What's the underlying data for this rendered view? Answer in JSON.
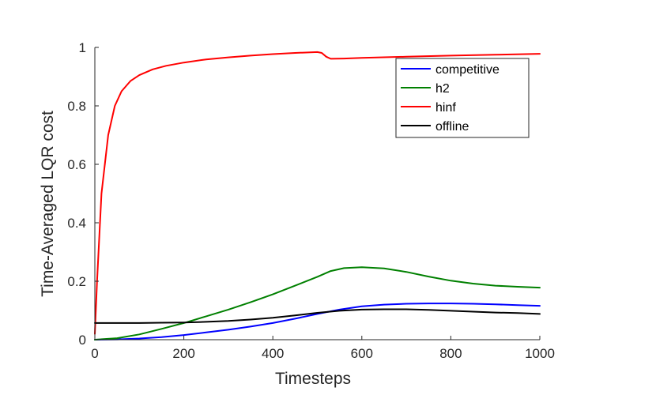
{
  "chart_data": {
    "type": "line",
    "xlabel": "Timesteps",
    "ylabel": "Time-Averaged LQR cost",
    "xlim": [
      0,
      1000
    ],
    "ylim": [
      0,
      1
    ],
    "xticks": [
      "0",
      "200",
      "400",
      "600",
      "800",
      "1000"
    ],
    "yticks": [
      "0",
      "0.2",
      "0.4",
      "0.6",
      "0.8",
      "1"
    ],
    "grid": false,
    "legend_position": "top-right",
    "series": [
      {
        "name": "competitive",
        "color": "#0000ff",
        "x": [
          0,
          50,
          100,
          150,
          200,
          250,
          300,
          350,
          400,
          450,
          500,
          550,
          600,
          650,
          700,
          750,
          800,
          850,
          900,
          950,
          1000
        ],
        "y": [
          0,
          0.001,
          0.004,
          0.009,
          0.016,
          0.025,
          0.034,
          0.045,
          0.057,
          0.072,
          0.088,
          0.103,
          0.114,
          0.12,
          0.123,
          0.124,
          0.124,
          0.123,
          0.121,
          0.118,
          0.116
        ]
      },
      {
        "name": "h2",
        "color": "#008000",
        "x": [
          0,
          50,
          100,
          150,
          200,
          250,
          300,
          350,
          400,
          450,
          500,
          530,
          560,
          600,
          650,
          700,
          750,
          800,
          850,
          900,
          950,
          1000
        ],
        "y": [
          0,
          0.005,
          0.018,
          0.037,
          0.057,
          0.08,
          0.103,
          0.128,
          0.155,
          0.185,
          0.215,
          0.235,
          0.245,
          0.248,
          0.244,
          0.232,
          0.216,
          0.202,
          0.192,
          0.185,
          0.181,
          0.178
        ]
      },
      {
        "name": "hinf",
        "color": "#ff0000",
        "x": [
          0,
          5,
          15,
          30,
          45,
          60,
          80,
          100,
          130,
          160,
          200,
          250,
          300,
          350,
          400,
          450,
          500,
          510,
          520,
          530,
          560,
          600,
          700,
          800,
          900,
          1000
        ],
        "y": [
          0.02,
          0.2,
          0.5,
          0.7,
          0.8,
          0.85,
          0.885,
          0.905,
          0.925,
          0.937,
          0.948,
          0.959,
          0.966,
          0.972,
          0.977,
          0.981,
          0.984,
          0.981,
          0.968,
          0.961,
          0.962,
          0.964,
          0.968,
          0.972,
          0.975,
          0.978
        ]
      },
      {
        "name": "offline",
        "color": "#000000",
        "x": [
          0,
          50,
          100,
          150,
          200,
          250,
          300,
          350,
          400,
          450,
          500,
          550,
          600,
          650,
          700,
          750,
          800,
          850,
          900,
          950,
          1000
        ],
        "y": [
          0.057,
          0.057,
          0.057,
          0.058,
          0.059,
          0.061,
          0.064,
          0.069,
          0.075,
          0.083,
          0.092,
          0.099,
          0.103,
          0.104,
          0.104,
          0.102,
          0.099,
          0.096,
          0.093,
          0.091,
          0.088
        ]
      }
    ]
  }
}
